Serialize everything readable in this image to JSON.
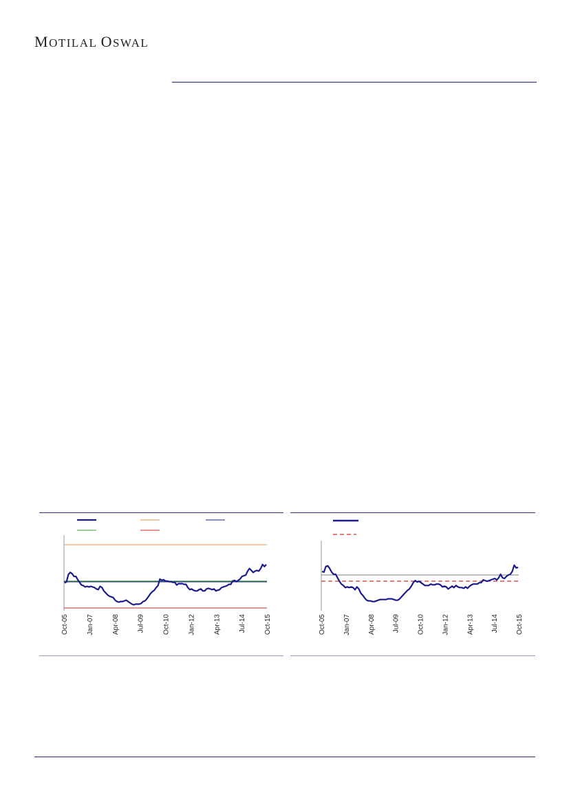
{
  "header": {
    "brand_first": "M",
    "brand_rest_1": "OTILAL ",
    "brand_second": "O",
    "brand_rest_2": "SWAL"
  },
  "colors": {
    "series": "#1b1b8e",
    "upper": "#e8944a",
    "mean": "#3a9a3a",
    "lower": "#d42a2a",
    "ref": "#808080",
    "dashed": "#d42a2a"
  },
  "chart_data": [
    {
      "type": "line",
      "x_tick_labels": [
        "Oct-05",
        "Jan-07",
        "Apr-08",
        "Jul-09",
        "Oct-10",
        "Jan-12",
        "Apr-13",
        "Jul-14",
        "Oct-15"
      ],
      "legend": [
        "",
        "",
        "",
        "",
        ""
      ],
      "reference_lines": [
        "upper",
        "mean",
        "lower"
      ],
      "series_values": [
        0.42,
        0.44,
        0.55,
        0.58,
        0.56,
        0.52,
        0.52,
        0.47,
        0.43,
        0.39,
        0.38,
        0.36,
        0.37,
        0.36,
        0.37,
        0.36,
        0.35,
        0.33,
        0.32,
        0.37,
        0.35,
        0.3,
        0.27,
        0.24,
        0.22,
        0.21,
        0.2,
        0.16,
        0.14,
        0.13,
        0.14,
        0.14,
        0.15,
        0.16,
        0.14,
        0.12,
        0.1,
        0.09,
        0.1,
        0.1,
        0.1,
        0.11,
        0.14,
        0.15,
        0.18,
        0.22,
        0.26,
        0.29,
        0.31,
        0.35,
        0.38,
        0.48,
        0.46,
        0.47,
        0.45,
        0.45,
        0.44,
        0.44,
        0.43,
        0.43,
        0.39,
        0.41,
        0.41,
        0.41,
        0.4,
        0.4,
        0.35,
        0.32,
        0.33,
        0.31,
        0.3,
        0.3,
        0.32,
        0.33,
        0.3,
        0.3,
        0.33,
        0.34,
        0.33,
        0.32,
        0.33,
        0.3,
        0.31,
        0.32,
        0.35,
        0.36,
        0.37,
        0.38,
        0.4,
        0.4,
        0.45,
        0.46,
        0.44,
        0.46,
        0.48,
        0.52,
        0.53,
        0.54,
        0.6,
        0.64,
        0.61,
        0.58,
        0.6,
        0.61,
        0.6,
        0.64,
        0.7,
        0.67,
        0.7
      ]
    },
    {
      "type": "line",
      "x_tick_labels": [
        "Oct-05",
        "Jan-07",
        "Apr-08",
        "Jul-09",
        "Oct-10",
        "Jan-12",
        "Apr-13",
        "Jul-14",
        "Oct-15"
      ],
      "legend": [
        "",
        ""
      ],
      "reference_lines": [
        "mean",
        "lower"
      ],
      "series_values": [
        0.56,
        0.55,
        0.63,
        0.64,
        0.6,
        0.55,
        0.52,
        0.52,
        0.47,
        0.42,
        0.38,
        0.36,
        0.33,
        0.34,
        0.33,
        0.34,
        0.33,
        0.3,
        0.34,
        0.31,
        0.25,
        0.22,
        0.18,
        0.15,
        0.14,
        0.14,
        0.13,
        0.13,
        0.14,
        0.15,
        0.16,
        0.16,
        0.16,
        0.16,
        0.17,
        0.17,
        0.17,
        0.16,
        0.15,
        0.15,
        0.17,
        0.2,
        0.23,
        0.26,
        0.29,
        0.31,
        0.35,
        0.4,
        0.43,
        0.41,
        0.42,
        0.4,
        0.38,
        0.36,
        0.36,
        0.36,
        0.38,
        0.37,
        0.37,
        0.38,
        0.38,
        0.37,
        0.34,
        0.35,
        0.34,
        0.31,
        0.33,
        0.35,
        0.33,
        0.36,
        0.34,
        0.33,
        0.33,
        0.32,
        0.34,
        0.32,
        0.35,
        0.37,
        0.38,
        0.38,
        0.38,
        0.4,
        0.4,
        0.44,
        0.43,
        0.42,
        0.43,
        0.44,
        0.45,
        0.46,
        0.44,
        0.47,
        0.52,
        0.47,
        0.46,
        0.49,
        0.51,
        0.52,
        0.56,
        0.65,
        0.61,
        0.62
      ]
    }
  ]
}
